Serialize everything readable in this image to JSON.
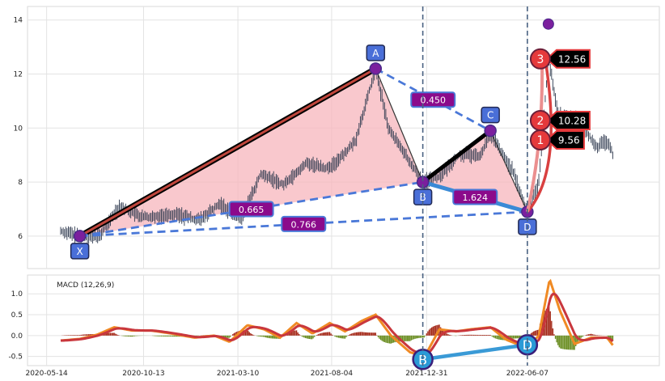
{
  "chart_data": [
    {
      "type": "line",
      "subtype": "candlestick-with-harmonic-pattern",
      "title": "",
      "x_ticks": [
        "2020-05-14",
        "2020-10-13",
        "2021-03-10",
        "2021-08-04",
        "2021-12-31",
        "2022-06-07"
      ],
      "y_ticks": [
        6,
        8,
        10,
        12,
        14
      ],
      "ylim": [
        4.8,
        14.5
      ],
      "xlim": [
        "2020-04-14",
        "2022-12-31"
      ],
      "grid": true,
      "price_series": {
        "name": "",
        "color": "#2f3a4f",
        "anchors": [
          [
            "2020-06-05",
            6.2
          ],
          [
            "2020-07-01",
            6.0
          ],
          [
            "2020-08-05",
            6.0
          ],
          [
            "2020-09-05",
            7.1
          ],
          [
            "2020-10-10",
            6.7
          ],
          [
            "2020-12-01",
            6.8
          ],
          [
            "2021-01-10",
            6.6
          ],
          [
            "2021-02-10",
            7.2
          ],
          [
            "2021-03-15",
            6.6
          ],
          [
            "2021-04-15",
            8.3
          ],
          [
            "2021-05-20",
            7.9
          ],
          [
            "2021-06-25",
            8.7
          ],
          [
            "2021-08-01",
            8.5
          ],
          [
            "2021-09-10",
            9.5
          ],
          [
            "2021-10-12",
            12.2
          ],
          [
            "2021-11-01",
            10.0
          ],
          [
            "2021-12-25",
            8.0
          ],
          [
            "2022-01-20",
            8.2
          ],
          [
            "2022-02-20",
            9.0
          ],
          [
            "2022-03-25",
            9.0
          ],
          [
            "2022-04-10",
            9.8
          ],
          [
            "2022-05-15",
            8.4
          ],
          [
            "2022-06-07",
            6.9
          ],
          [
            "2022-06-25",
            8.0
          ],
          [
            "2022-07-10",
            12.6
          ],
          [
            "2022-07-25",
            10.5
          ],
          [
            "2022-08-20",
            10.4
          ],
          [
            "2022-09-25",
            9.3
          ],
          [
            "2022-10-10",
            9.5
          ],
          [
            "2022-10-20",
            9.0
          ]
        ]
      },
      "pattern_points": [
        {
          "label": "X",
          "date": "2020-07-05",
          "value": 6.0
        },
        {
          "label": "A",
          "date": "2021-10-12",
          "value": 12.2
        },
        {
          "label": "B",
          "date": "2021-12-25",
          "value": 8.0
        },
        {
          "label": "C",
          "date": "2022-04-10",
          "value": 9.9
        },
        {
          "label": "D",
          "date": "2022-06-07",
          "value": 6.9
        }
      ],
      "ratios": [
        {
          "label": "0.665",
          "from": "X",
          "to": "B"
        },
        {
          "label": "0.450",
          "from": "A",
          "to": "C"
        },
        {
          "label": "1.624",
          "from": "B",
          "to": "D"
        },
        {
          "label": "0.766",
          "from": "X",
          "to": "D"
        }
      ],
      "targets": [
        {
          "label": "1",
          "value_label": "9.56",
          "date": "2022-07-05",
          "value": 9.56
        },
        {
          "label": "2",
          "value_label": "10.28",
          "date": "2022-07-05",
          "value": 10.28
        },
        {
          "label": "3",
          "value_label": "12.56",
          "date": "2022-07-05",
          "value": 12.56
        }
      ],
      "high_point": {
        "date": "2022-07-10",
        "value": 13.85
      },
      "vertical_markers": [
        "2021-12-25",
        "2022-06-07"
      ],
      "colors": {
        "fill": "#f7b6bc",
        "xa_line": "#c0463c",
        "dashed": "#4a78d8",
        "bd_line": "#3a8ad6",
        "label_box": "#8b0a8b",
        "label_border": "#4a78d8",
        "point_box": "#4a6fd8",
        "point_dot": "#7b1f9e",
        "target_circle": "#e5393b",
        "target_arrow": "#d94040"
      }
    },
    {
      "type": "line",
      "subtype": "macd",
      "label": "MACD (12,26,9)",
      "y_ticks": [
        -0.5,
        0.0,
        0.5,
        1.0
      ],
      "ylim": [
        -0.72,
        1.45
      ],
      "grid": true,
      "macd_anchors": [
        [
          "2020-06-05",
          -0.12
        ],
        [
          "2020-07-05",
          -0.08
        ],
        [
          "2020-08-01",
          0.02
        ],
        [
          "2020-08-28",
          0.2
        ],
        [
          "2020-09-25",
          0.12
        ],
        [
          "2020-10-25",
          0.12
        ],
        [
          "2020-11-25",
          0.05
        ],
        [
          "2021-01-01",
          -0.05
        ],
        [
          "2021-02-01",
          0.0
        ],
        [
          "2021-02-25",
          -0.15
        ],
        [
          "2021-03-25",
          0.25
        ],
        [
          "2021-04-20",
          0.15
        ],
        [
          "2021-05-15",
          -0.05
        ],
        [
          "2021-06-10",
          0.3
        ],
        [
          "2021-07-05",
          0.05
        ],
        [
          "2021-08-01",
          0.3
        ],
        [
          "2021-08-25",
          0.1
        ],
        [
          "2021-09-20",
          0.35
        ],
        [
          "2021-10-12",
          0.5
        ],
        [
          "2021-11-05",
          0.0
        ],
        [
          "2021-12-05",
          -0.4
        ],
        [
          "2021-12-28",
          -0.5
        ],
        [
          "2022-01-20",
          0.15
        ],
        [
          "2022-02-15",
          0.1
        ],
        [
          "2022-03-10",
          0.15
        ],
        [
          "2022-04-10",
          0.2
        ],
        [
          "2022-05-05",
          -0.1
        ],
        [
          "2022-06-07",
          -0.3
        ],
        [
          "2022-06-25",
          0.0
        ],
        [
          "2022-07-12",
          1.35
        ],
        [
          "2022-07-28",
          0.6
        ],
        [
          "2022-08-20",
          -0.2
        ],
        [
          "2022-09-15",
          -0.05
        ],
        [
          "2022-10-10",
          -0.05
        ],
        [
          "2022-10-20",
          -0.25
        ]
      ],
      "pattern_points": [
        {
          "label": "B",
          "date": "2021-12-25",
          "value": -0.57
        },
        {
          "label": "D",
          "date": "2022-06-07",
          "value": -0.22
        }
      ],
      "colors": {
        "macd": "#f08a24",
        "signal": "#c9373d",
        "hist_pos": "#a52a1a",
        "hist_neg": "#6b8e23",
        "point_fill": "#2a9ad6",
        "point_border": "#3b1f7a",
        "connector": "#3a9ad6"
      }
    }
  ]
}
